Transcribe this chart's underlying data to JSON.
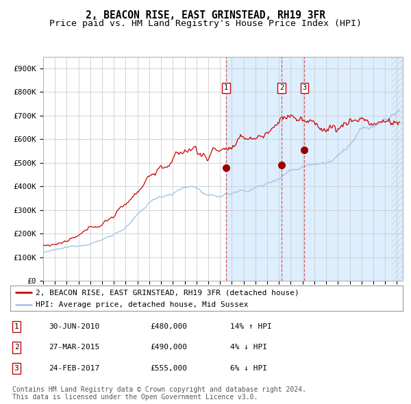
{
  "title": "2, BEACON RISE, EAST GRINSTEAD, RH19 3FR",
  "subtitle": "Price paid vs. HM Land Registry's House Price Index (HPI)",
  "xlim_start": 1995.0,
  "xlim_end": 2025.5,
  "ylim": [
    0,
    950000
  ],
  "yticks": [
    0,
    100000,
    200000,
    300000,
    400000,
    500000,
    600000,
    700000,
    800000,
    900000
  ],
  "ytick_labels": [
    "£0",
    "£100K",
    "£200K",
    "£300K",
    "£400K",
    "£500K",
    "£600K",
    "£700K",
    "£800K",
    "£900K"
  ],
  "sale_dates": [
    2010.5,
    2015.23,
    2017.15
  ],
  "sale_prices": [
    480000,
    490000,
    555000
  ],
  "sale_labels": [
    "1",
    "2",
    "3"
  ],
  "hpi_color": "#a8c8e8",
  "price_color": "#cc0000",
  "dot_color": "#990000",
  "vline_color": "#cc4444",
  "shade_color": "#ddeeff",
  "hatch_start": 2024.5,
  "legend_line1": "2, BEACON RISE, EAST GRINSTEAD, RH19 3FR (detached house)",
  "legend_line2": "HPI: Average price, detached house, Mid Sussex",
  "table_data": [
    [
      "1",
      "30-JUN-2010",
      "£480,000",
      "14% ↑ HPI"
    ],
    [
      "2",
      "27-MAR-2015",
      "£490,000",
      "4% ↓ HPI"
    ],
    [
      "3",
      "24-FEB-2017",
      "£555,000",
      "6% ↓ HPI"
    ]
  ],
  "footnote": "Contains HM Land Registry data © Crown copyright and database right 2024.\nThis data is licensed under the Open Government Licence v3.0.",
  "title_fontsize": 10.5,
  "subtitle_fontsize": 9.5,
  "tick_fontsize": 8,
  "legend_fontsize": 8,
  "table_fontsize": 8,
  "footnote_fontsize": 7
}
